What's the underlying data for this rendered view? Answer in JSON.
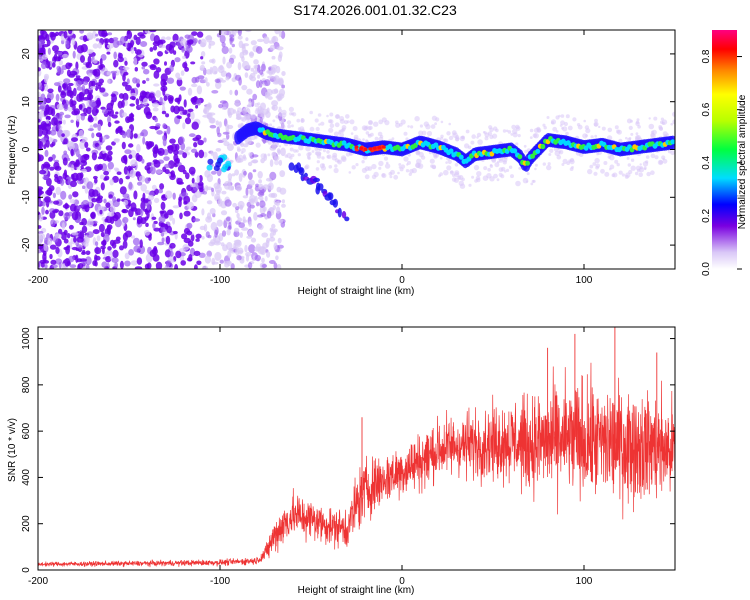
{
  "title": "S174.2026.001.01.32.C23",
  "colors": {
    "trace": "#ee3333",
    "scatter_dim": "#d9c7f7",
    "scatter_mid": "#9a5cf0",
    "scatter_dense": "#6a00e8"
  },
  "chart_data": [
    {
      "type": "heatmap",
      "name": "spectrogram",
      "xlabel": "Height of straight line (km)",
      "ylabel": "Frequency (Hz)",
      "xlim": [
        -200,
        150
      ],
      "ylim": [
        -25,
        25
      ],
      "xticks": [
        -200,
        -100,
        0,
        100
      ],
      "xtick_labels": [
        "-200",
        "-100",
        "0",
        "100"
      ],
      "yticks": [
        -20,
        -10,
        0,
        10,
        20
      ],
      "ytick_labels": [
        "-20",
        "-10",
        "0",
        "10",
        "20"
      ],
      "colorbar": {
        "label": "Normalized spectral amplitude",
        "range": [
          0.0,
          0.9
        ],
        "ticks": [
          0.0,
          0.2,
          0.4,
          0.6,
          0.8
        ],
        "tick_labels": [
          "0.0",
          "0.2",
          "0.4",
          "0.6",
          "0.8"
        ]
      },
      "ridge": {
        "x": [
          -90,
          -85,
          -80,
          -75,
          -70,
          -60,
          -50,
          -40,
          -30,
          -20,
          -10,
          0,
          10,
          20,
          30,
          35,
          40,
          50,
          60,
          65,
          68,
          70,
          75,
          80,
          90,
          100,
          110,
          120,
          130,
          140,
          150
        ],
        "y": [
          2.5,
          4,
          4.5,
          3.5,
          3,
          2.5,
          2,
          1.5,
          1,
          0,
          0.5,
          0,
          1.5,
          0.5,
          -1,
          -2.5,
          -1,
          -0.5,
          0,
          -1.5,
          -3.5,
          -2,
          0,
          2,
          1.5,
          0.5,
          1,
          0,
          0.5,
          1,
          1.5
        ]
      },
      "branch": {
        "x": [
          -60,
          -55,
          -50,
          -45,
          -40,
          -35,
          -30
        ],
        "y": [
          -3,
          -5,
          -6.5,
          -8,
          -9.5,
          -12,
          -15
        ]
      }
    },
    {
      "type": "line",
      "name": "snr",
      "xlabel": "Height of straight line (km)",
      "ylabel": "SNR (10 * v/v)",
      "xlim": [
        -200,
        150
      ],
      "ylim": [
        0,
        1050
      ],
      "xticks": [
        -200,
        -100,
        0,
        100
      ],
      "xtick_labels": [
        "-200",
        "-100",
        "0",
        "100"
      ],
      "yticks": [
        0,
        200,
        400,
        600,
        800,
        1000
      ],
      "ytick_labels": [
        "0",
        "200",
        "400",
        "600",
        "800",
        "1000"
      ],
      "envelope": {
        "x": [
          -200,
          -150,
          -100,
          -80,
          -75,
          -70,
          -60,
          -50,
          -40,
          -30,
          -25,
          -20,
          -10,
          0,
          10,
          20,
          30,
          40,
          50,
          60,
          70,
          80,
          90,
          100,
          110,
          120,
          130,
          140,
          150
        ],
        "mean": [
          25,
          28,
          32,
          40,
          70,
          150,
          240,
          220,
          190,
          180,
          280,
          350,
          390,
          430,
          470,
          520,
          540,
          545,
          550,
          560,
          540,
          555,
          565,
          560,
          550,
          545,
          540,
          530,
          520
        ],
        "spread": [
          8,
          10,
          12,
          14,
          30,
          70,
          90,
          80,
          70,
          80,
          120,
          120,
          100,
          100,
          110,
          120,
          120,
          130,
          140,
          160,
          180,
          200,
          220,
          230,
          220,
          220,
          210,
          200,
          190
        ]
      },
      "peaks": [
        {
          "x": -22,
          "y": 660
        },
        {
          "x": 80,
          "y": 960
        },
        {
          "x": 95,
          "y": 1020
        },
        {
          "x": 117,
          "y": 1050
        },
        {
          "x": 140,
          "y": 940
        }
      ]
    }
  ]
}
